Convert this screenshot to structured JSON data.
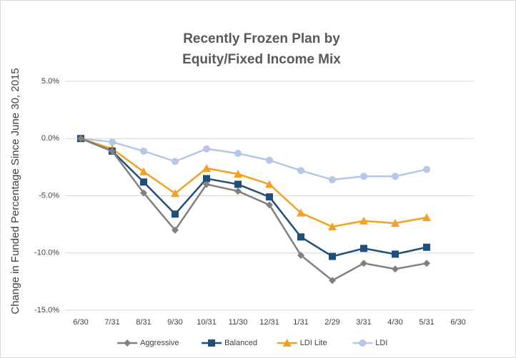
{
  "chart_data": {
    "type": "line",
    "title": [
      "Recently Frozen Plan by",
      "Equity/Fixed Income Mix"
    ],
    "y_label": "Change in Funded Percentage Since June 30, 2015",
    "categories": [
      "6/30",
      "7/31",
      "8/31",
      "9/30",
      "10/31",
      "11/30",
      "12/31",
      "1/31",
      "2/29",
      "3/31",
      "4/30",
      "5/31",
      "6/30"
    ],
    "series": [
      {
        "name": "Aggressive",
        "color": "#808080",
        "marker": "diamond",
        "values": [
          0,
          -1.1,
          -4.75,
          -8.0,
          -4.0,
          -4.6,
          -5.8,
          -10.2,
          -12.4,
          -10.9,
          -11.4,
          -10.9,
          null
        ]
      },
      {
        "name": "Balanced",
        "color": "#1f4e79",
        "marker": "square",
        "values": [
          0,
          -1.1,
          -3.8,
          -6.6,
          -3.5,
          -4.0,
          -5.1,
          -8.6,
          -10.3,
          -9.6,
          -10.1,
          -9.5,
          null
        ]
      },
      {
        "name": "LDI Lite",
        "color": "#f4a024",
        "marker": "triangle",
        "values": [
          0,
          -0.9,
          -2.9,
          -4.8,
          -2.6,
          -3.1,
          -4.0,
          -6.5,
          -7.7,
          -7.2,
          -7.4,
          -6.9,
          null
        ]
      },
      {
        "name": "LDI",
        "color": "#b4c7e7",
        "marker": "circle",
        "values": [
          0,
          -0.3,
          -1.1,
          -2.0,
          -0.9,
          -1.3,
          -1.9,
          -2.8,
          -3.6,
          -3.3,
          -3.3,
          -2.7,
          null
        ]
      }
    ],
    "ylim": [
      -15,
      5
    ],
    "yticks": [
      {
        "value": -15,
        "label": "-15.0%"
      },
      {
        "value": -10,
        "label": "-10.0%"
      },
      {
        "value": -5,
        "label": "-5.0%"
      },
      {
        "value": 0,
        "label": "0.0%"
      },
      {
        "value": 5,
        "label": "5.0%"
      }
    ],
    "grid": true,
    "legend": "bottom"
  }
}
